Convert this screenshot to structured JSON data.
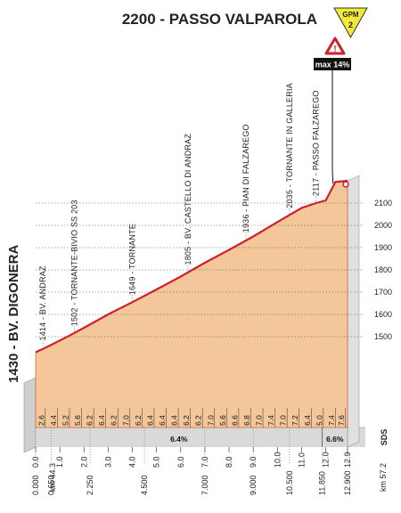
{
  "chart_data": {
    "type": "area",
    "title": "2200 - PASSO VALPAROLA",
    "gpm_badge": {
      "label": "GPM",
      "category": "2",
      "color": "#f2ea3a"
    },
    "max_gradient": {
      "label": "max 14%",
      "at_km_partial": 12.3
    },
    "start_label": "1430 - BV. DIGONERA",
    "sds_label": "SDS",
    "colors": {
      "profile_fill": "#f3c79a",
      "profile_edge": "#c84a2a",
      "side_face": "#cfcfcf",
      "road": "#d0202a",
      "base_band": "#d9d9d9"
    },
    "profile": {
      "x_km": [
        0.0,
        0.4,
        1.4,
        2.0,
        3.0,
        4.0,
        5.0,
        6.0,
        7.0,
        8.0,
        9.0,
        10.0,
        11.0,
        11.6,
        12.0,
        12.4,
        12.9
      ],
      "altitude_m": [
        1430,
        1450,
        1505,
        1540,
        1600,
        1655,
        1712,
        1770,
        1832,
        1890,
        1950,
        2015,
        2078,
        2100,
        2112,
        2195,
        2200
      ]
    },
    "km_partial_ticks": [
      "0.0",
      "1.0",
      "2.0",
      "3.0",
      "4.0",
      "5.0",
      "6.0",
      "7.0",
      "8.0",
      "9.0",
      "10.0",
      "11.0",
      "12.0",
      "12.9"
    ],
    "km_partial_ticks_x": [
      0,
      1,
      2,
      3,
      4,
      5,
      6,
      7,
      8,
      9,
      10,
      11,
      12,
      12.9
    ],
    "km_total_start": "km 44.3",
    "km_total_end": "km 57.2",
    "distance_marks": [
      {
        "label": "0.000",
        "km": 0.0
      },
      {
        "label": "0.650",
        "km": 0.65
      },
      {
        "label": "2.250",
        "km": 2.25
      },
      {
        "label": "4.500",
        "km": 4.5
      },
      {
        "label": "7.000",
        "km": 7.0
      },
      {
        "label": "9.000",
        "km": 9.0
      },
      {
        "label": "10.500",
        "km": 10.5
      },
      {
        "label": "11.850",
        "km": 11.85
      },
      {
        "label": "12.900",
        "km": 12.9
      }
    ],
    "segment_gradients": [
      {
        "label": "2.6",
        "km": 0.4
      },
      {
        "label": "4.4",
        "km": 0.9
      },
      {
        "label": "5.2",
        "km": 1.4
      },
      {
        "label": "5.6",
        "km": 1.9
      },
      {
        "label": "6.2",
        "km": 2.4
      },
      {
        "label": "6.4",
        "km": 2.9
      },
      {
        "label": "6.2",
        "km": 3.4
      },
      {
        "label": "7.0",
        "km": 3.9
      },
      {
        "label": "6.2",
        "km": 4.4
      },
      {
        "label": "6.4",
        "km": 4.9
      },
      {
        "label": "6.4",
        "km": 5.4
      },
      {
        "label": "6.4",
        "km": 5.9
      },
      {
        "label": "6.2",
        "km": 6.4
      },
      {
        "label": "6.2",
        "km": 6.9
      },
      {
        "label": "7.0",
        "km": 7.4
      },
      {
        "label": "5.6",
        "km": 7.9
      },
      {
        "label": "6.6",
        "km": 8.4
      },
      {
        "label": "6.8",
        "km": 8.9
      },
      {
        "label": "7.0",
        "km": 9.4
      },
      {
        "label": "7.4",
        "km": 9.9
      },
      {
        "label": "7.0",
        "km": 10.4
      },
      {
        "label": "7.2",
        "km": 10.9
      },
      {
        "label": "6.4",
        "km": 11.4
      },
      {
        "label": "5.0",
        "km": 11.9
      },
      {
        "label": "7.4",
        "km": 12.4
      },
      {
        "label": "7.6",
        "km": 12.8
      }
    ],
    "average_gradients": [
      {
        "label": "6.4%",
        "from_km": 0.0,
        "to_km": 11.85
      },
      {
        "label": "6.6%",
        "from_km": 11.85,
        "to_km": 12.9
      }
    ],
    "y_axis": {
      "ticks": [
        1500,
        1600,
        1700,
        1800,
        1900,
        2000,
        2100
      ],
      "ylim": [
        1430,
        2200
      ]
    },
    "waypoints": [
      {
        "label": "1414 - BV. ANDRAZ",
        "km": 0.3,
        "alt": 1450
      },
      {
        "label": "1502 - TORNANTE-BIVIO SS 203",
        "km": 1.6,
        "alt": 1515
      },
      {
        "label": "1649 - TORNANTE",
        "km": 4.0,
        "alt": 1655
      },
      {
        "label": "1805 - BV. CASTELLO DI ANDRAZ",
        "km": 6.3,
        "alt": 1790
      },
      {
        "label": "1936 - PIAN DI FALZAREGO",
        "km": 8.7,
        "alt": 1935
      },
      {
        "label": "2035 - TORNANTE IN GALLERIA",
        "km": 10.5,
        "alt": 2045
      },
      {
        "label": "2117 - PASSO FALZAREGO",
        "km": 11.6,
        "alt": 2100
      }
    ]
  }
}
